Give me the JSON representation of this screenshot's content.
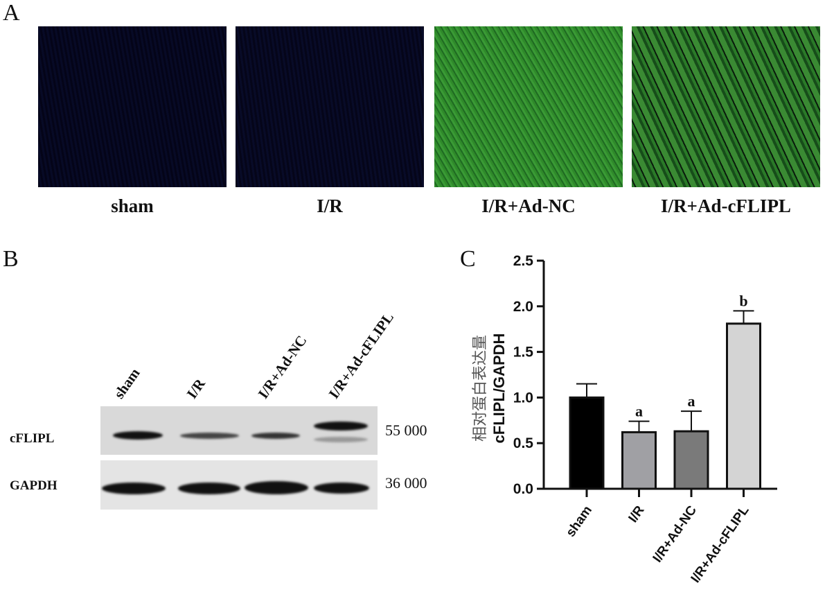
{
  "panels": {
    "a": "A",
    "b": "B",
    "c": "C"
  },
  "micrographs": [
    {
      "label": "sham",
      "intensity": 0.05
    },
    {
      "label": "I/R",
      "intensity": 0.06
    },
    {
      "label": "I/R+Ad-NC",
      "intensity": 0.8
    },
    {
      "label": "I/R+Ad-cFLIPL",
      "intensity": 0.6
    }
  ],
  "western": {
    "lanes": [
      "sham",
      "I/R",
      "I/R+Ad-NC",
      "I/R+Ad-cFLIPL"
    ],
    "rows": [
      {
        "label": "cFLIPL",
        "mw": "55 000"
      },
      {
        "label": "GAPDH",
        "mw": "36 000"
      }
    ]
  },
  "chart_data": {
    "type": "bar",
    "categories": [
      "sham",
      "I/R",
      "I/R+Ad-NC",
      "I/R+Ad-cFLIPL"
    ],
    "values": [
      1.0,
      0.62,
      0.63,
      1.81
    ],
    "error_upper": [
      1.15,
      0.74,
      0.85,
      1.95
    ],
    "annotations": [
      "",
      "a",
      "a",
      "b"
    ],
    "bar_colors": [
      "#000000",
      "#a0a0a4",
      "#7a7a7a",
      "#d4d4d4"
    ],
    "ylabel_line1": "相对蛋白表达量",
    "ylabel_line2": "cFLIPL/GAPDH",
    "ylim": [
      0,
      2.5
    ],
    "yticks": [
      "0.0",
      "0.5",
      "1.0",
      "1.5",
      "2.0",
      "2.5"
    ],
    "grid": false
  }
}
